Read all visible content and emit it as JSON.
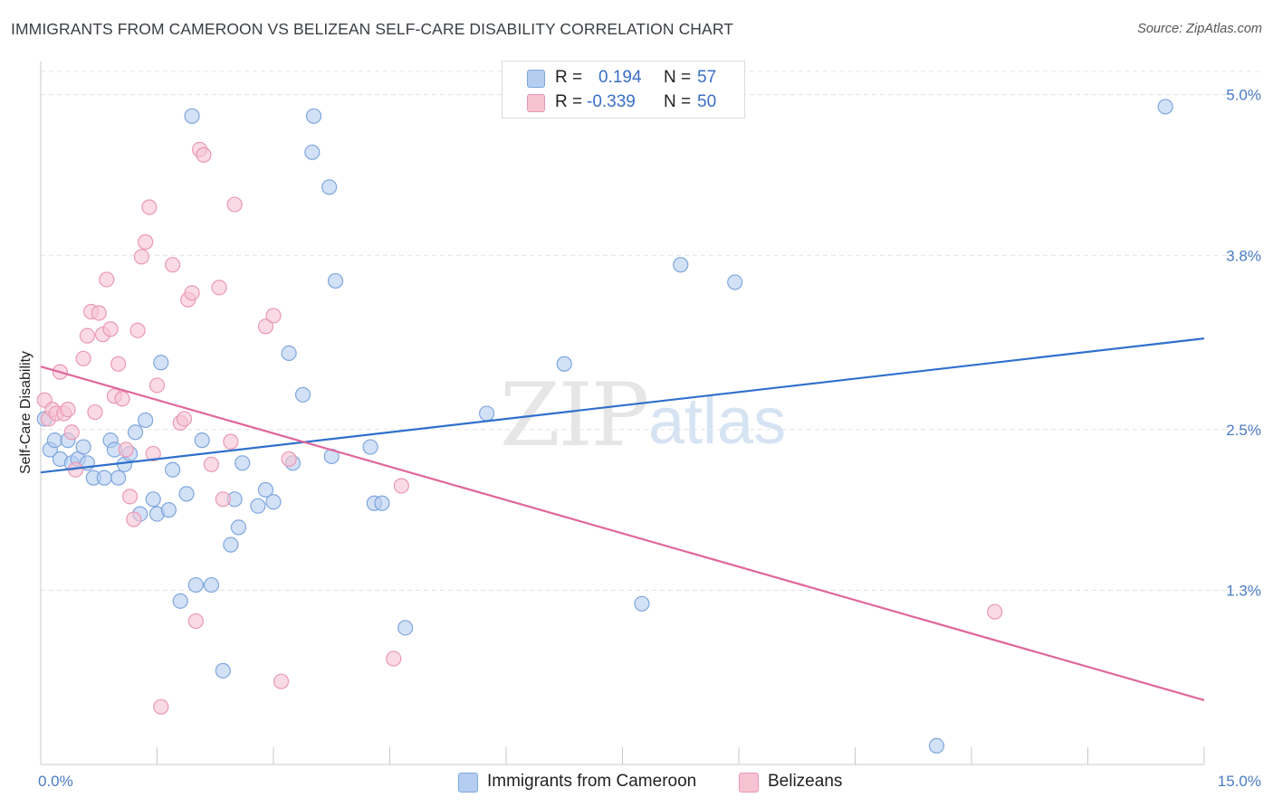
{
  "title": "IMMIGRANTS FROM CAMEROON VS BELIZEAN SELF-CARE DISABILITY CORRELATION CHART",
  "source": "Source: ZipAtlas.com",
  "watermark": {
    "zip": "ZIP",
    "atlas": "atlas"
  },
  "legend": {
    "r_label": "R =",
    "n_label": "N =",
    "rows": [
      {
        "r": "0.194",
        "n": "57"
      },
      {
        "r": "-0.339",
        "n": "50"
      }
    ]
  },
  "bottom_legend": [
    "Immigrants from Cameroon",
    "Belizeans"
  ],
  "colors": {
    "blue_fill": "#b5cdf0",
    "blue_stroke": "#7ea6de",
    "blue_line": "#2f6fcb",
    "pink_fill": "#f6c3d3",
    "pink_stroke": "#ea98b4",
    "pink_line": "#e0679a",
    "grid": "#e3e3e3",
    "tick_text": "#4a7cc4"
  },
  "chart_data": {
    "type": "scatter",
    "title": "IMMIGRANTS FROM CAMEROON VS BELIZEAN SELF-CARE DISABILITY CORRELATION CHART",
    "ylabel": "Self-Care Disability",
    "xlabel": "",
    "xlim": [
      0,
      15
    ],
    "ylim": [
      0,
      5.2
    ],
    "x_tick_labels": [
      "0.0%",
      "15.0%"
    ],
    "y_ticks": [
      1.3,
      2.5,
      3.8,
      5.0
    ],
    "y_tick_labels": [
      "1.3%",
      "2.5%",
      "3.8%",
      "5.0%"
    ],
    "grid": true,
    "legend_position": "top-center",
    "series": [
      {
        "name": "Immigrants from Cameroon",
        "color": "blue",
        "R": 0.194,
        "N": 57,
        "trend": {
          "x": [
            0,
            15
          ],
          "y": [
            2.18,
            3.18
          ]
        },
        "points": [
          [
            0.12,
            2.35
          ],
          [
            0.18,
            2.42
          ],
          [
            0.25,
            2.28
          ],
          [
            0.35,
            2.42
          ],
          [
            0.4,
            2.25
          ],
          [
            0.48,
            2.28
          ],
          [
            0.55,
            2.37
          ],
          [
            0.6,
            2.25
          ],
          [
            0.68,
            2.14
          ],
          [
            0.82,
            2.14
          ],
          [
            0.9,
            2.42
          ],
          [
            0.95,
            2.35
          ],
          [
            1.0,
            2.14
          ],
          [
            1.08,
            2.24
          ],
          [
            1.15,
            2.32
          ],
          [
            1.22,
            2.48
          ],
          [
            1.28,
            1.87
          ],
          [
            1.35,
            2.57
          ],
          [
            1.45,
            1.98
          ],
          [
            1.5,
            1.87
          ],
          [
            1.55,
            3.0
          ],
          [
            1.65,
            1.9
          ],
          [
            1.7,
            2.2
          ],
          [
            1.8,
            1.22
          ],
          [
            1.88,
            2.02
          ],
          [
            1.95,
            4.84
          ],
          [
            2.0,
            1.34
          ],
          [
            2.08,
            2.42
          ],
          [
            2.2,
            1.34
          ],
          [
            2.35,
            0.7
          ],
          [
            2.45,
            1.64
          ],
          [
            2.5,
            1.98
          ],
          [
            2.55,
            1.77
          ],
          [
            2.6,
            2.25
          ],
          [
            2.8,
            1.93
          ],
          [
            2.9,
            2.05
          ],
          [
            3.0,
            1.96
          ],
          [
            3.2,
            3.07
          ],
          [
            3.25,
            2.25
          ],
          [
            3.38,
            2.76
          ],
          [
            3.5,
            4.57
          ],
          [
            3.52,
            4.84
          ],
          [
            3.72,
            4.31
          ],
          [
            3.75,
            2.3
          ],
          [
            3.8,
            3.61
          ],
          [
            4.25,
            2.37
          ],
          [
            4.3,
            1.95
          ],
          [
            4.4,
            1.95
          ],
          [
            4.7,
            1.02
          ],
          [
            5.75,
            2.62
          ],
          [
            6.75,
            2.99
          ],
          [
            7.75,
            1.2
          ],
          [
            8.25,
            3.73
          ],
          [
            8.95,
            3.6
          ],
          [
            11.55,
            0.14
          ],
          [
            14.5,
            4.91
          ],
          [
            0.05,
            2.58
          ]
        ]
      },
      {
        "name": "Belizeans",
        "color": "pink",
        "R": -0.339,
        "N": 50,
        "trend": {
          "x": [
            0,
            15
          ],
          "y": [
            2.97,
            0.48
          ]
        },
        "points": [
          [
            0.05,
            2.72
          ],
          [
            0.1,
            2.58
          ],
          [
            0.15,
            2.65
          ],
          [
            0.2,
            2.62
          ],
          [
            0.25,
            2.93
          ],
          [
            0.3,
            2.62
          ],
          [
            0.35,
            2.65
          ],
          [
            0.4,
            2.48
          ],
          [
            0.45,
            2.2
          ],
          [
            0.55,
            3.03
          ],
          [
            0.6,
            3.2
          ],
          [
            0.65,
            3.38
          ],
          [
            0.7,
            2.63
          ],
          [
            0.75,
            3.37
          ],
          [
            0.8,
            3.21
          ],
          [
            0.85,
            3.62
          ],
          [
            0.9,
            3.25
          ],
          [
            0.95,
            2.75
          ],
          [
            1.0,
            2.99
          ],
          [
            1.05,
            2.73
          ],
          [
            1.1,
            2.35
          ],
          [
            1.15,
            2.0
          ],
          [
            1.2,
            1.83
          ],
          [
            1.25,
            3.24
          ],
          [
            1.3,
            3.79
          ],
          [
            1.35,
            3.9
          ],
          [
            1.4,
            4.16
          ],
          [
            1.45,
            2.32
          ],
          [
            1.5,
            2.83
          ],
          [
            1.55,
            0.43
          ],
          [
            1.7,
            3.73
          ],
          [
            1.8,
            2.55
          ],
          [
            1.85,
            2.58
          ],
          [
            1.9,
            3.47
          ],
          [
            1.95,
            3.52
          ],
          [
            2.0,
            1.07
          ],
          [
            2.05,
            4.59
          ],
          [
            2.1,
            4.55
          ],
          [
            2.2,
            2.24
          ],
          [
            2.3,
            3.56
          ],
          [
            2.35,
            1.98
          ],
          [
            2.45,
            2.41
          ],
          [
            2.5,
            4.18
          ],
          [
            2.9,
            3.27
          ],
          [
            3.0,
            3.35
          ],
          [
            3.1,
            0.62
          ],
          [
            3.2,
            2.28
          ],
          [
            4.55,
            0.79
          ],
          [
            4.65,
            2.08
          ],
          [
            12.3,
            1.14
          ]
        ]
      }
    ]
  }
}
